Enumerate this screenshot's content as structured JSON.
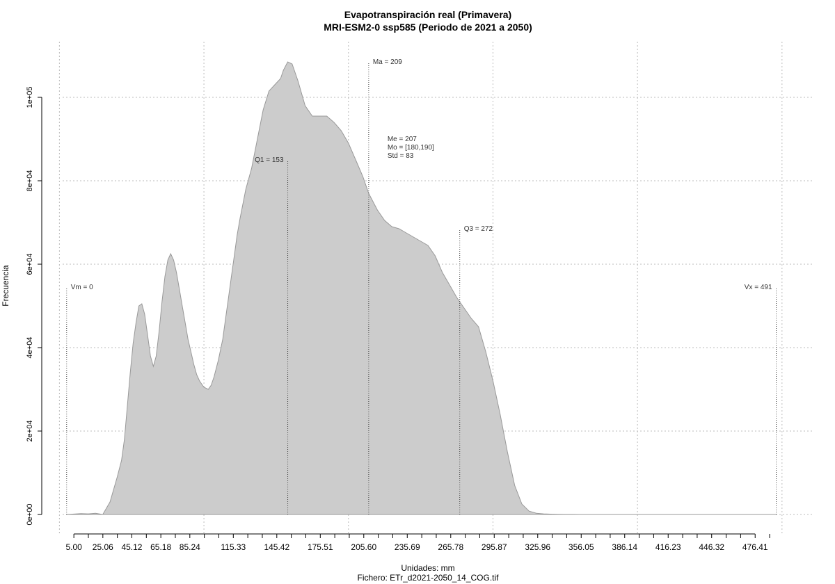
{
  "chart_data": {
    "type": "area",
    "title": "Evapotranspiración real (Primavera)",
    "subtitle": "MRI-ESM2-0 ssp585 (Periodo de 2021 a 2050)",
    "xlabel": "Unidades: mm",
    "caption": "Fichero: ETr_d2021-2050_14_COG.tif",
    "ylabel": "Frecuencia",
    "xlim": [
      -10,
      510
    ],
    "ylim": [
      0,
      110000
    ],
    "x_ticks": [
      "5.00",
      "25.06",
      "45.12",
      "65.18",
      "85.24",
      "115.33",
      "145.42",
      "175.51",
      "205.60",
      "235.69",
      "265.78",
      "295.87",
      "325.96",
      "356.05",
      "386.14",
      "416.23",
      "446.32",
      "476.41"
    ],
    "x_tick_values": [
      5.0,
      25.06,
      45.12,
      65.18,
      85.24,
      115.33,
      145.42,
      175.51,
      205.6,
      235.69,
      265.78,
      295.87,
      325.96,
      356.05,
      386.14,
      416.23,
      446.32,
      476.41
    ],
    "x_minor_ticks": [
      15.03,
      35.09,
      55.15,
      75.21,
      95.27,
      105.3,
      125.36,
      135.39,
      155.45,
      165.48,
      185.54,
      195.57,
      215.63,
      225.66,
      245.72,
      255.75,
      275.81,
      285.84,
      305.9,
      315.93,
      335.99,
      346.02,
      366.08,
      376.11,
      396.17,
      406.2,
      426.26,
      436.29,
      456.35,
      466.38,
      486.44
    ],
    "y_ticks": [
      "0e+00",
      "2e+04",
      "4e+04",
      "6e+04",
      "8e+04",
      "1e+05"
    ],
    "y_tick_values": [
      0,
      20000,
      40000,
      60000,
      80000,
      100000
    ],
    "grid": true,
    "grid_x_values": [
      -5,
      95,
      195,
      295,
      395,
      495
    ],
    "series": [
      {
        "x": [
          0,
          5,
          10,
          15,
          20,
          25,
          30,
          35,
          38,
          40,
          42,
          44,
          46,
          48,
          50,
          52,
          54,
          56,
          58,
          60,
          62,
          64,
          66,
          68,
          70,
          72,
          74,
          76,
          78,
          80,
          82,
          84,
          86,
          88,
          90,
          92,
          95,
          98,
          100,
          102,
          105,
          108,
          110,
          112,
          114,
          116,
          118,
          120,
          124,
          128,
          132,
          136,
          140,
          144,
          148,
          150,
          153,
          156,
          160,
          165,
          170,
          175,
          180,
          185,
          190,
          195,
          200,
          205,
          209,
          215,
          220,
          225,
          230,
          235,
          240,
          245,
          250,
          255,
          260,
          265,
          270,
          275,
          280,
          285,
          290,
          295,
          300,
          305,
          310,
          315,
          320,
          325,
          330,
          335,
          340,
          345,
          350,
          355,
          360,
          365,
          370,
          375,
          380,
          385,
          390,
          395,
          400,
          405,
          410,
          415,
          420,
          430,
          440,
          450,
          460,
          470,
          480,
          491
        ],
        "y": [
          0,
          100,
          200,
          150,
          300,
          0,
          3000,
          9000,
          13000,
          18000,
          26000,
          34000,
          41000,
          46000,
          50000,
          50500,
          48000,
          43000,
          38000,
          35500,
          38000,
          44000,
          51000,
          57000,
          61000,
          62500,
          61000,
          58000,
          54000,
          50000,
          46000,
          42000,
          39000,
          36000,
          33500,
          32000,
          30500,
          30000,
          31000,
          33000,
          37000,
          42000,
          47000,
          52000,
          57000,
          62000,
          67000,
          71000,
          78000,
          83000,
          90000,
          97000,
          101500,
          103000,
          104500,
          106500,
          108500,
          108000,
          104000,
          98000,
          95500,
          95500,
          95500,
          94000,
          92000,
          89000,
          85000,
          81000,
          77000,
          73000,
          70500,
          69000,
          68500,
          67500,
          66500,
          65500,
          64500,
          62000,
          58000,
          55000,
          52000,
          49500,
          47000,
          45000,
          39000,
          32000,
          24000,
          15000,
          7000,
          2500,
          800,
          300,
          150,
          80,
          40,
          20,
          10,
          5,
          0,
          0,
          0,
          0,
          0,
          0,
          0,
          0,
          0,
          0,
          0,
          0,
          0,
          0,
          0,
          0,
          0,
          0,
          0,
          0
        ]
      }
    ],
    "annotations": [
      {
        "label": "Vm = 0",
        "x": 0,
        "y_top": 54500,
        "anchor": "start"
      },
      {
        "label": "Q1 = 153",
        "x": 153,
        "y_top": 85000,
        "anchor": "end"
      },
      {
        "label": "Ma = 209",
        "x": 209,
        "y_top": 108500,
        "anchor": "start"
      },
      {
        "label": "Q3 = 272",
        "x": 272,
        "y_top": 68500,
        "anchor": "start"
      },
      {
        "label": "Vx = 491",
        "x": 491,
        "y_top": 54500,
        "anchor": "end"
      }
    ],
    "stats_box": [
      "Me = 207",
      "Mo = [180,190]",
      "Std = 83"
    ],
    "stats_box_anchor": {
      "x": 222,
      "y": 89500
    },
    "colors": {
      "fill": "#cccccc",
      "line": "#999999",
      "grid": "#bbbbbb",
      "annotation": "#444444"
    }
  }
}
